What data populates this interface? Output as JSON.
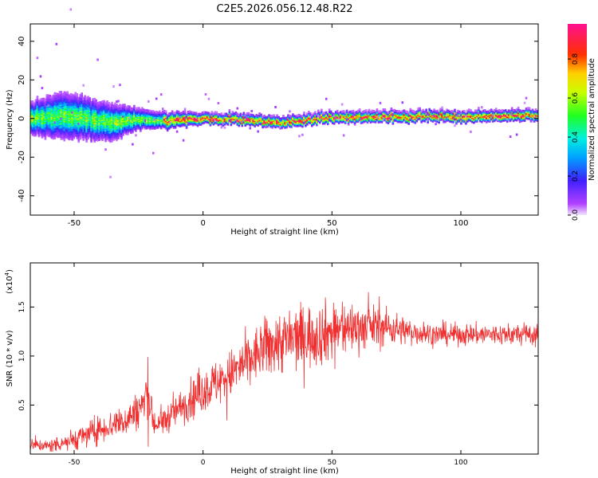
{
  "chart_data": [
    {
      "type": "heatmap",
      "title": "C2E5.2026.056.12.48.R22",
      "xlabel": "Height of straight line (km)",
      "ylabel": "Frequency (Hz)",
      "xlim": [
        -67,
        130
      ],
      "ylim": [
        -50,
        49
      ],
      "x_ticks": [
        -50,
        0,
        50,
        100
      ],
      "y_ticks": [
        -40,
        -20,
        0,
        20,
        40
      ],
      "colorbar": {
        "label": "Normalized spectral amplitude",
        "range": [
          0,
          0.98
        ],
        "ticks": [
          0.0,
          0.2,
          0.4,
          0.6,
          0.8
        ],
        "colormap": "rainbow (purple → blue → cyan → green → yellow → red → magenta)"
      },
      "ridge": {
        "description": "Narrow band of high amplitude centered near 0 Hz",
        "x": [
          -67,
          -55,
          -45,
          -35,
          -25,
          -15,
          0,
          15,
          30,
          45,
          60,
          80,
          100,
          130
        ],
        "center_hz": [
          0,
          2,
          0,
          -2,
          0,
          -1,
          0,
          0,
          -2,
          0,
          1,
          1,
          1,
          2
        ],
        "spread_hz": [
          6,
          9,
          8,
          7,
          4,
          3,
          2,
          2,
          2,
          2,
          2,
          2,
          2,
          2
        ]
      }
    },
    {
      "type": "line",
      "xlabel": "Height of straight line (km)",
      "ylabel": "SNR (10 * v/v)",
      "y_multiplier": "(x10",
      "y_multiplier_exp": "4",
      "xlim": [
        -67,
        130
      ],
      "ylim": [
        0,
        1.95
      ],
      "x_ticks": [
        -50,
        0,
        50,
        100
      ],
      "y_ticks": [
        0.5,
        1.0,
        1.5
      ],
      "series": [
        {
          "color": "#f03030",
          "x": [
            -67,
            -60,
            -50,
            -40,
            -30,
            -25,
            -21,
            -19,
            -17,
            -10,
            0,
            10,
            20,
            25,
            30,
            40,
            50,
            60,
            70,
            80,
            90,
            100,
            110,
            120,
            130
          ],
          "y": [
            0.1,
            0.08,
            0.15,
            0.25,
            0.35,
            0.45,
            0.6,
            0.3,
            0.3,
            0.45,
            0.65,
            0.8,
            1.0,
            1.1,
            1.15,
            1.2,
            1.25,
            1.3,
            1.3,
            1.25,
            1.22,
            1.22,
            1.22,
            1.22,
            1.22
          ],
          "noise": [
            0.05,
            0.06,
            0.1,
            0.12,
            0.15,
            0.17,
            0.35,
            0.1,
            0.12,
            0.15,
            0.2,
            0.22,
            0.25,
            0.28,
            0.3,
            0.3,
            0.28,
            0.22,
            0.18,
            0.12,
            0.1,
            0.1,
            0.1,
            0.1,
            0.1
          ]
        }
      ]
    }
  ]
}
